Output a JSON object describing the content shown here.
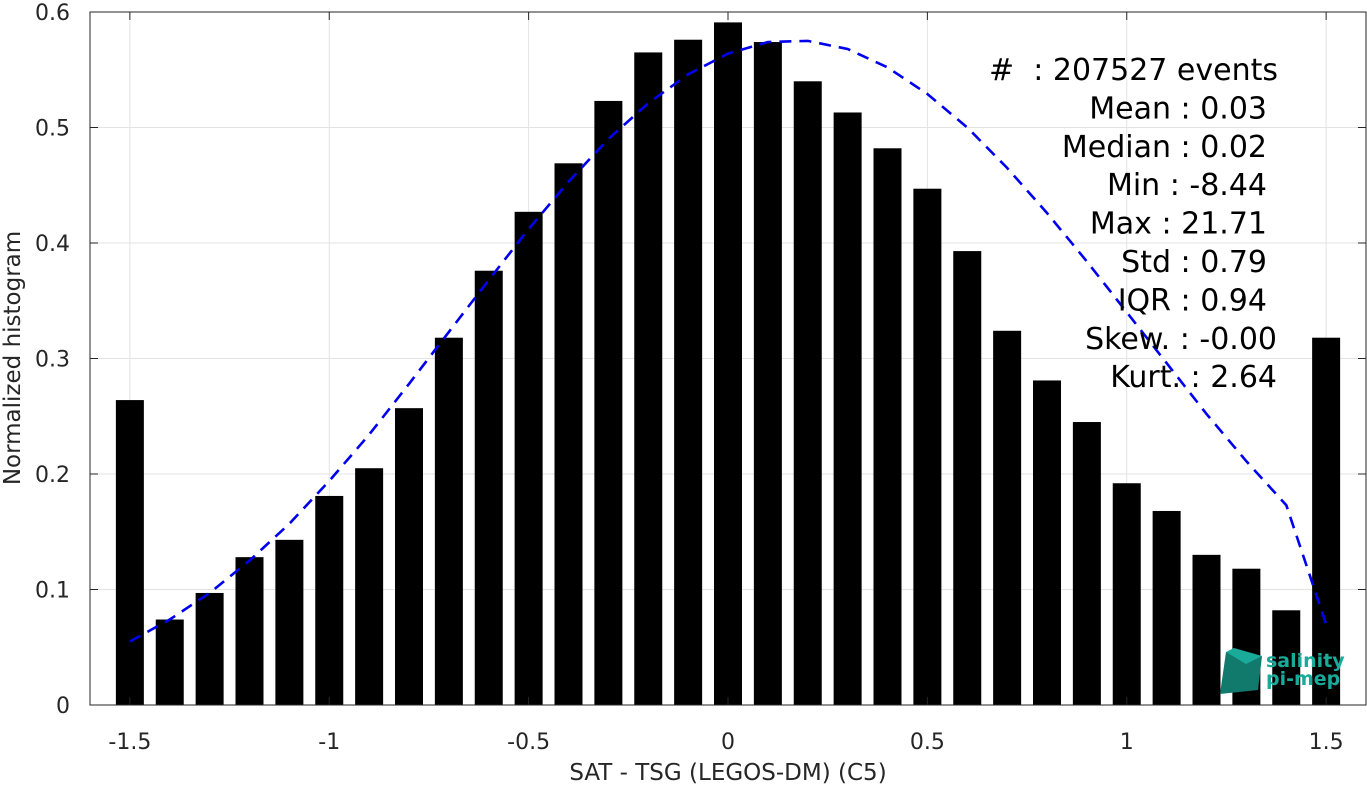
{
  "chart_data": {
    "type": "bar",
    "xlabel": "SAT - TSG (LEGOS-DM) (C5)",
    "ylabel": "Normalized histogram",
    "xlim": [
      -1.6,
      1.6
    ],
    "ylim": [
      0,
      0.6
    ],
    "grid": true,
    "xticks": [
      -1.5,
      -1,
      -0.5,
      0,
      0.5,
      1,
      1.5
    ],
    "xtick_labels": [
      "-1.5",
      "-1",
      "-0.5",
      "0",
      "0.5",
      "1",
      "1.5"
    ],
    "yticks": [
      0,
      0.1,
      0.2,
      0.3,
      0.4,
      0.5,
      0.6
    ],
    "ytick_labels": [
      "0",
      "0.1",
      "0.2",
      "0.3",
      "0.4",
      "0.5",
      "0.6"
    ],
    "bar_color": "#000000",
    "fit_color": "#0000ee",
    "bins": [
      -1.5,
      -1.4,
      -1.3,
      -1.2,
      -1.1,
      -1.0,
      -0.9,
      -0.8,
      -0.7,
      -0.6,
      -0.5,
      -0.4,
      -0.3,
      -0.2,
      -0.1,
      0.0,
      0.1,
      0.2,
      0.3,
      0.4,
      0.5,
      0.6,
      0.7,
      0.8,
      0.9,
      1.0,
      1.1,
      1.2,
      1.3,
      1.4,
      1.5
    ],
    "values": [
      0.264,
      0.074,
      0.097,
      0.128,
      0.143,
      0.181,
      0.205,
      0.257,
      0.318,
      0.376,
      0.427,
      0.469,
      0.523,
      0.565,
      0.576,
      0.591,
      0.574,
      0.54,
      0.513,
      0.482,
      0.447,
      0.393,
      0.324,
      0.281,
      0.245,
      0.192,
      0.168,
      0.13,
      0.118,
      0.082,
      0.318
    ],
    "fit_curve": {
      "style": "dashed",
      "x": [
        -1.5,
        -1.4,
        -1.3,
        -1.2,
        -1.1,
        -1.0,
        -0.9,
        -0.8,
        -0.7,
        -0.6,
        -0.5,
        -0.4,
        -0.3,
        -0.2,
        -0.1,
        0.0,
        0.1,
        0.2,
        0.3,
        0.4,
        0.5,
        0.6,
        0.7,
        0.8,
        0.9,
        1.0,
        1.1,
        1.2,
        1.3,
        1.4,
        1.5
      ],
      "y": [
        0.055,
        0.074,
        0.097,
        0.125,
        0.157,
        0.194,
        0.234,
        0.278,
        0.323,
        0.368,
        0.412,
        0.453,
        0.49,
        0.521,
        0.546,
        0.564,
        0.574,
        0.575,
        0.568,
        0.552,
        0.529,
        0.5,
        0.465,
        0.426,
        0.384,
        0.34,
        0.296,
        0.252,
        0.211,
        0.173,
        0.07
      ]
    },
    "stats": [
      "#  : 207527 events",
      "Mean : 0.03",
      "Median : 0.02",
      "Min : -8.44",
      "Max : 21.71",
      "Std : 0.79",
      "IQR : 0.94",
      "Skew. : -0.00",
      "Kurt. : 2.64"
    ],
    "logo": {
      "line1": "salinity",
      "line2": "pi-mep",
      "color": "#1aaa99"
    }
  }
}
